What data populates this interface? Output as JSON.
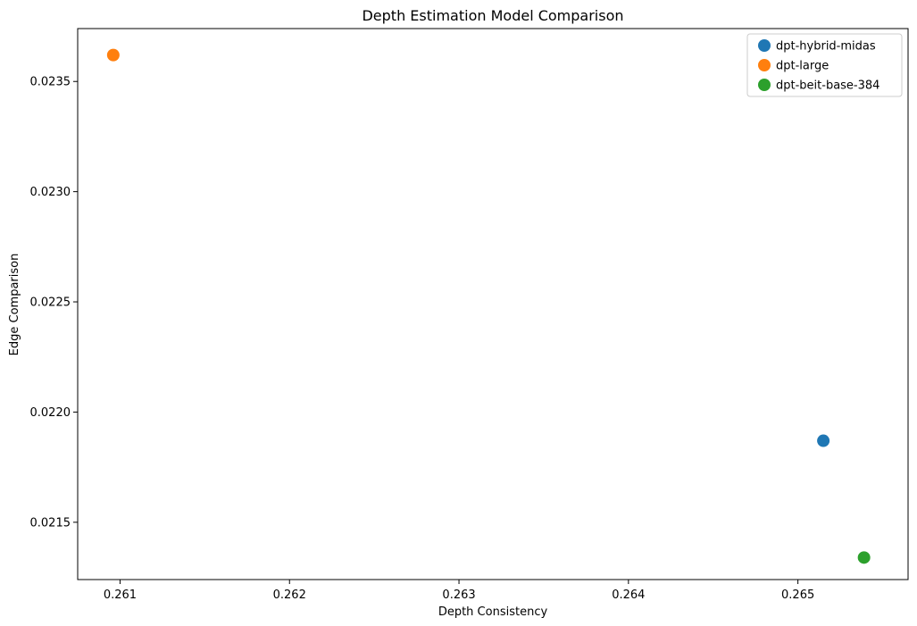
{
  "chart_data": {
    "type": "scatter",
    "title": "Depth Estimation Model Comparison",
    "xlabel": "Depth Consistency",
    "ylabel": "Edge Comparison",
    "xlim": [
      0.26075,
      0.26565
    ],
    "ylim": [
      0.02124,
      0.02374
    ],
    "x_ticks": [
      "0.261",
      "0.262",
      "0.263",
      "0.264",
      "0.265"
    ],
    "x_tick_values": [
      0.261,
      0.262,
      0.263,
      0.264,
      0.265
    ],
    "y_ticks": [
      "0.0215",
      "0.0220",
      "0.0225",
      "0.0230",
      "0.0235"
    ],
    "y_tick_values": [
      0.0215,
      0.022,
      0.0225,
      0.023,
      0.0235
    ],
    "grid": false,
    "legend_position": "top-right",
    "series": [
      {
        "name": "dpt-hybrid-midas",
        "color": "#1f77b4",
        "x": [
          0.26515
        ],
        "y": [
          0.02187
        ]
      },
      {
        "name": "dpt-large",
        "color": "#ff7f0e",
        "x": [
          0.26096
        ],
        "y": [
          0.02362
        ]
      },
      {
        "name": "dpt-beit-base-384",
        "color": "#2ca02c",
        "x": [
          0.26539
        ],
        "y": [
          0.02134
        ]
      }
    ]
  }
}
